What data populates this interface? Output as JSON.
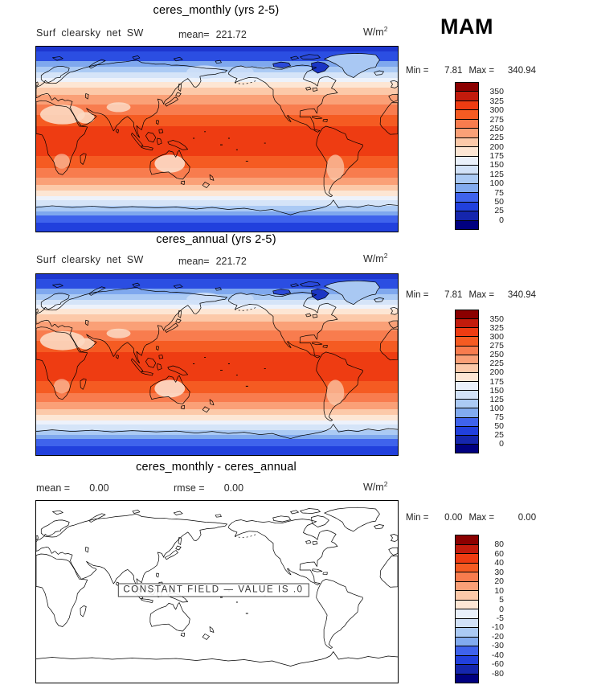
{
  "season_label": "MAM",
  "palette": [
    "#8b0000",
    "#c21b0c",
    "#ee3c12",
    "#f55b22",
    "#f87c4e",
    "#faa077",
    "#fcc9a9",
    "#fde6d4",
    "#eaf1fb",
    "#d2e2f8",
    "#abcaf4",
    "#82abef",
    "#3f63ec",
    "#2140dd",
    "#1526ad",
    "#000080"
  ],
  "map_bands": [
    {
      "t": 0.0,
      "h": 0.025,
      "c": "#1d36cf"
    },
    {
      "t": 0.025,
      "h": 0.055,
      "c": "#2b4ee2"
    },
    {
      "t": 0.08,
      "h": 0.03,
      "c": "#7fa8ee"
    },
    {
      "t": 0.11,
      "h": 0.03,
      "c": "#abcaf4"
    },
    {
      "t": 0.14,
      "h": 0.03,
      "c": "#d5e4f8"
    },
    {
      "t": 0.17,
      "h": 0.022,
      "c": "#edf2fb"
    },
    {
      "t": 0.192,
      "h": 0.03,
      "c": "#fde6d4"
    },
    {
      "t": 0.222,
      "h": 0.04,
      "c": "#fcc9a9"
    },
    {
      "t": 0.262,
      "h": 0.05,
      "c": "#faa077"
    },
    {
      "t": 0.312,
      "h": 0.058,
      "c": "#f87c4e"
    },
    {
      "t": 0.37,
      "h": 0.062,
      "c": "#f55b22"
    },
    {
      "t": 0.432,
      "h": 0.158,
      "c": "#ee3c12"
    },
    {
      "t": 0.59,
      "h": 0.068,
      "c": "#f55b22"
    },
    {
      "t": 0.658,
      "h": 0.05,
      "c": "#f87c4e"
    },
    {
      "t": 0.708,
      "h": 0.04,
      "c": "#faa077"
    },
    {
      "t": 0.748,
      "h": 0.03,
      "c": "#fcc9a9"
    },
    {
      "t": 0.778,
      "h": 0.03,
      "c": "#fde6d4"
    },
    {
      "t": 0.808,
      "h": 0.022,
      "c": "#edf2fb"
    },
    {
      "t": 0.83,
      "h": 0.03,
      "c": "#d5e4f8"
    },
    {
      "t": 0.86,
      "h": 0.03,
      "c": "#abcaf4"
    },
    {
      "t": 0.89,
      "h": 0.022,
      "c": "#7fa8ee"
    },
    {
      "t": 0.912,
      "h": 0.038,
      "c": "#3f63ec"
    },
    {
      "t": 0.95,
      "h": 0.05,
      "c": "#2140dd"
    }
  ],
  "white_bands": [
    {
      "t": 0,
      "h": 1,
      "c": "#ffffff"
    }
  ],
  "panels": [
    {
      "title": "ceres_monthly (yrs 2-5)",
      "var_label": "Surf clearsky net SW",
      "mean_label": "mean=",
      "mean_value": "221.72",
      "units_base": "W/m",
      "units_exp": "2",
      "min_label": "Min =",
      "min_value": "7.81",
      "max_label": "Max =",
      "max_value": "340.94",
      "colorbar_labels": [
        "350",
        "325",
        "300",
        "275",
        "250",
        "225",
        "200",
        "175",
        "150",
        "125",
        "100",
        "75",
        "50",
        "25",
        "0"
      ]
    },
    {
      "title": "ceres_annual (yrs 2-5)",
      "var_label": "Surf clearsky net SW",
      "mean_label": "mean=",
      "mean_value": "221.72",
      "units_base": "W/m",
      "units_exp": "2",
      "min_label": "Min =",
      "min_value": "7.81",
      "max_label": "Max =",
      "max_value": "340.94",
      "colorbar_labels": [
        "350",
        "325",
        "300",
        "275",
        "250",
        "225",
        "200",
        "175",
        "150",
        "125",
        "100",
        "75",
        "50",
        "25",
        "0"
      ]
    },
    {
      "title": "ceres_monthly - ceres_annual",
      "mean_label": "mean =",
      "mean_value": "0.00",
      "rmse_label": "rmse =",
      "rmse_value": "0.00",
      "units_base": "W/m",
      "units_exp": "2",
      "min_label": "Min =",
      "min_value": "0.00",
      "max_label": "Max =",
      "max_value": "0.00",
      "constant_note": "CONSTANT FIELD — VALUE IS .0",
      "colorbar_labels": [
        "80",
        "60",
        "40",
        "30",
        "20",
        "10",
        "5",
        "0",
        "-5",
        "-10",
        "-20",
        "-30",
        "-40",
        "-60",
        "-80"
      ]
    }
  ],
  "chart_data": [
    {
      "type": "heatmap",
      "subtype": "filled-contour world map, equirectangular, Pacific-centered (0-360E)",
      "title": "ceres_monthly (yrs 2-5)",
      "variable": "Surf clearsky net SW",
      "season": "MAM",
      "units": "W/m^2",
      "mean": 221.72,
      "min": 7.81,
      "max": 340.94,
      "colorbar_ticks": [
        350,
        325,
        300,
        275,
        250,
        225,
        200,
        175,
        150,
        125,
        100,
        75,
        50,
        25,
        0
      ],
      "palette_top_to_bottom": [
        "#8b0000",
        "#c21b0c",
        "#ee3c12",
        "#f55b22",
        "#f87c4e",
        "#faa077",
        "#fcc9a9",
        "#fde6d4",
        "#eaf1fb",
        "#d2e2f8",
        "#abcaf4",
        "#82abef",
        "#3f63ec",
        "#2140dd",
        "#1526ad",
        "#000080"
      ],
      "pattern": "zonal bands: ~300-350 W/m2 dark red in tropics peaking ~10-20N, decreasing through orange/cream mid-latitudes to blues (<100) poleward; dark blue <25 at both poles"
    },
    {
      "type": "heatmap",
      "subtype": "filled-contour world map, equirectangular, Pacific-centered (0-360E)",
      "title": "ceres_annual (yrs 2-5)",
      "variable": "Surf clearsky net SW",
      "season": "MAM",
      "units": "W/m^2",
      "mean": 221.72,
      "min": 7.81,
      "max": 340.94,
      "colorbar_ticks": [
        350,
        325,
        300,
        275,
        250,
        225,
        200,
        175,
        150,
        125,
        100,
        75,
        50,
        25,
        0
      ],
      "pattern": "nearly identical zonal-band structure to ceres_monthly panel"
    },
    {
      "type": "heatmap",
      "subtype": "difference map (outline only)",
      "title": "ceres_monthly - ceres_annual",
      "season": "MAM",
      "units": "W/m^2",
      "mean": 0.0,
      "rmse": 0.0,
      "min": 0.0,
      "max": 0.0,
      "colorbar_ticks": [
        80,
        60,
        40,
        30,
        20,
        10,
        5,
        0,
        -5,
        -10,
        -20,
        -30,
        -40,
        -60,
        -80
      ],
      "annotation": "CONSTANT FIELD — VALUE IS .0",
      "pattern": "uniform zero field; map shows coastlines only on white background"
    }
  ]
}
